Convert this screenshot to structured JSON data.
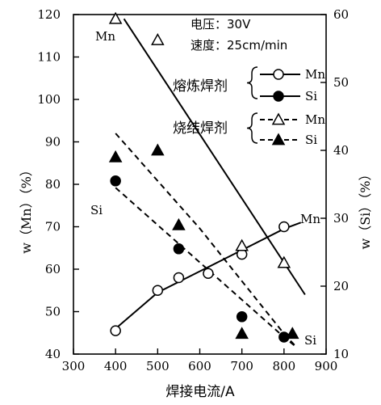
{
  "chart_data": {
    "type": "line",
    "xlabel": "焊接电流/A",
    "ylabel_left": "w（Mn）（%）",
    "ylabel_right": "w（Si）（%）",
    "xlim": [
      300,
      900
    ],
    "ylim_left": [
      40,
      120
    ],
    "ylim_right": [
      10,
      60
    ],
    "xticks": [
      300,
      400,
      500,
      600,
      700,
      800,
      900
    ],
    "yticks_left": [
      40,
      50,
      60,
      70,
      80,
      90,
      100,
      110,
      120
    ],
    "yticks_right": [
      10,
      20,
      30,
      40,
      50,
      60
    ],
    "grid": false,
    "conditions": [
      "电压：30V",
      "速度：25cm/min"
    ],
    "legend": {
      "groups": [
        {
          "label": "熔炼焊剂",
          "items": [
            {
              "symbol": "open-circle",
              "label": "Mn"
            },
            {
              "symbol": "filled-circle",
              "label": "Si"
            }
          ]
        },
        {
          "label": "烧结焊剂",
          "items": [
            {
              "symbol": "open-triangle",
              "label": "Mn"
            },
            {
              "symbol": "filled-triangle",
              "label": "Si"
            }
          ]
        }
      ]
    },
    "curve_labels": {
      "mn_steep": "Mn",
      "mn_rising": "Mn",
      "si_upper": "Si",
      "si_lower": "Si"
    },
    "series": [
      {
        "axis": "left",
        "marker": "open-circle",
        "points": [
          [
            400,
            45.5
          ],
          [
            500,
            55
          ],
          [
            550,
            58
          ],
          [
            620,
            59
          ],
          [
            700,
            63.5
          ],
          [
            800,
            70
          ]
        ]
      },
      {
        "axis": "left",
        "marker": "open-triangle",
        "points": [
          [
            400,
            119
          ],
          [
            500,
            114
          ],
          [
            700,
            65.5
          ],
          [
            800,
            61.5
          ]
        ]
      },
      {
        "axis": "right",
        "marker": "filled-circle",
        "points": [
          [
            400,
            35.5
          ],
          [
            550,
            25.5
          ],
          [
            700,
            15.5
          ],
          [
            800,
            12.5
          ]
        ]
      },
      {
        "axis": "right",
        "marker": "filled-triangle",
        "points": [
          [
            400,
            39
          ],
          [
            500,
            40
          ],
          [
            550,
            29
          ],
          [
            700,
            13
          ],
          [
            820,
            13
          ]
        ]
      }
    ],
    "trend_lines": [
      {
        "axis": "left",
        "style": "solid",
        "points": [
          [
            420,
            119
          ],
          [
            850,
            54
          ]
        ]
      },
      {
        "axis": "left",
        "style": "solid",
        "points": [
          [
            400,
            46
          ],
          [
            500,
            54.5
          ],
          [
            600,
            59.5
          ],
          [
            700,
            64.5
          ],
          [
            800,
            69.5
          ],
          [
            840,
            71
          ]
        ]
      },
      {
        "axis": "right",
        "style": "dashed",
        "points": [
          [
            400,
            42.5
          ],
          [
            600,
            28.5
          ],
          [
            800,
            13
          ],
          [
            830,
            11
          ]
        ]
      },
      {
        "axis": "right",
        "style": "dashed",
        "points": [
          [
            400,
            34.5
          ],
          [
            600,
            23.5
          ],
          [
            800,
            12.5
          ],
          [
            830,
            11
          ]
        ]
      }
    ]
  }
}
